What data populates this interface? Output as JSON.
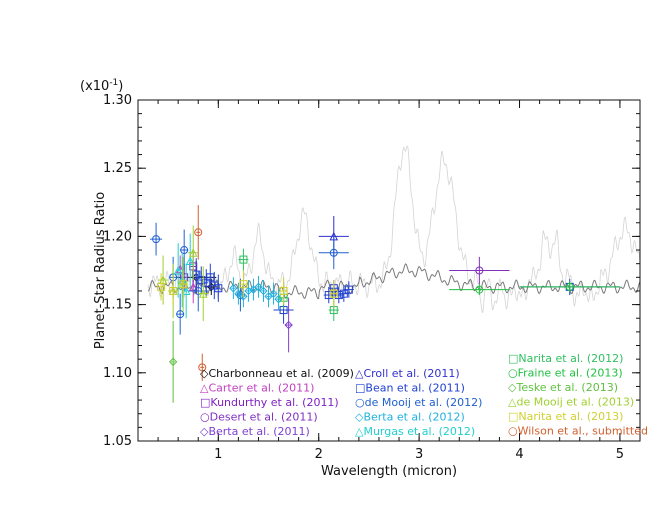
{
  "chart_data": {
    "type": "scatter",
    "xlabel": "Wavelength (micron)",
    "ylabel": "Planet-Star Radius Ratio",
    "y_multiplier_label": "(x10",
    "y_multiplier_exp": "-1",
    "y_multiplier_close": ")",
    "xlim": [
      0.2,
      5.2
    ],
    "ylim": [
      1.05,
      1.3
    ],
    "x_ticks": [
      1,
      2,
      3,
      4,
      5
    ],
    "y_ticks": [
      1.05,
      1.1,
      1.15,
      1.2,
      1.25,
      1.3
    ],
    "y_tick_labels": [
      "1.05",
      "1.10",
      "1.15",
      "1.20",
      "1.25",
      "1.30"
    ],
    "grid": false,
    "series": [
      {
        "name": "Charbonneau et al. (2009)",
        "color": "#111111",
        "marker": "diamond",
        "points": [
          [
            0.78,
            1.17,
            0.2,
            0.012
          ],
          [
            0.93,
            1.163,
            0.06,
            0.006
          ]
        ]
      },
      {
        "name": "Carter et al. (2011)",
        "color": "#c040c0",
        "marker": "triangle",
        "points": [
          [
            0.62,
            1.176,
            0.02,
            0.01
          ],
          [
            0.75,
            1.163,
            0.02,
            0.012
          ]
        ]
      },
      {
        "name": "Kundurthy et al. (2011)",
        "color": "#8020c0",
        "marker": "square",
        "points": [
          [
            0.66,
            1.17,
            0.03,
            0.01
          ],
          [
            0.75,
            1.178,
            0.03,
            0.012
          ]
        ]
      },
      {
        "name": "Desert et al. (2011)",
        "color": "#8030c0",
        "marker": "circle",
        "points": [
          [
            3.6,
            1.175,
            0.3,
            0.01
          ]
        ]
      },
      {
        "name": "Berta et al. (2011)",
        "color": "#8040d0",
        "marker": "diamond",
        "points": [
          [
            1.7,
            1.135,
            0.03,
            0.02
          ]
        ]
      },
      {
        "name": "Croll et al. (2011)",
        "color": "#3030d0",
        "marker": "triangle",
        "points": [
          [
            2.15,
            1.2,
            0.15,
            0.015
          ]
        ]
      },
      {
        "name": "Bean et al. (2011)",
        "color": "#2040d0",
        "marker": "square",
        "points": [
          [
            0.78,
            1.172,
            0.02,
            0.012
          ],
          [
            0.83,
            1.168,
            0.02,
            0.01
          ],
          [
            0.88,
            1.166,
            0.02,
            0.01
          ],
          [
            0.92,
            1.17,
            0.02,
            0.01
          ],
          [
            0.96,
            1.164,
            0.02,
            0.01
          ],
          [
            1.0,
            1.162,
            0.02,
            0.01
          ],
          [
            1.65,
            1.146,
            0.1,
            0.01
          ],
          [
            2.1,
            1.157,
            0.05,
            0.006
          ],
          [
            2.15,
            1.162,
            0.05,
            0.006
          ],
          [
            2.2,
            1.157,
            0.05,
            0.006
          ],
          [
            2.25,
            1.158,
            0.05,
            0.006
          ],
          [
            2.3,
            1.161,
            0.05,
            0.006
          ],
          [
            4.5,
            1.163,
            0.5,
            0.006
          ]
        ]
      },
      {
        "name": "de Mooij et al. (2012)",
        "color": "#2060d0",
        "marker": "circle",
        "points": [
          [
            0.38,
            1.198,
            0.06,
            0.012
          ],
          [
            0.55,
            1.17,
            0.04,
            0.015
          ],
          [
            0.62,
            1.143,
            0.04,
            0.015
          ],
          [
            0.66,
            1.19,
            0.04,
            0.015
          ],
          [
            0.8,
            1.16,
            0.1,
            0.015
          ],
          [
            2.15,
            1.188,
            0.15,
            0.012
          ],
          [
            1.22,
            1.157,
            0.05,
            0.012
          ]
        ]
      },
      {
        "name": "Berta et al. (2012)",
        "color": "#20b0e0",
        "marker": "diamond",
        "points": [
          [
            1.15,
            1.162,
            0.02,
            0.008
          ],
          [
            1.2,
            1.158,
            0.02,
            0.008
          ],
          [
            1.25,
            1.156,
            0.02,
            0.008
          ],
          [
            1.3,
            1.16,
            0.02,
            0.008
          ],
          [
            1.35,
            1.161,
            0.02,
            0.008
          ],
          [
            1.4,
            1.163,
            0.02,
            0.008
          ],
          [
            1.45,
            1.16,
            0.02,
            0.008
          ],
          [
            1.5,
            1.156,
            0.02,
            0.008
          ],
          [
            1.55,
            1.158,
            0.02,
            0.008
          ],
          [
            1.6,
            1.154,
            0.02,
            0.008
          ]
        ]
      },
      {
        "name": "Murgas et al. (2012)",
        "color": "#20d0d0",
        "marker": "triangle",
        "points": [
          [
            0.6,
            1.175,
            0.01,
            0.02
          ],
          [
            0.64,
            1.168,
            0.01,
            0.02
          ],
          [
            0.68,
            1.16,
            0.01,
            0.02
          ],
          [
            0.72,
            1.182,
            0.01,
            0.02
          ]
        ]
      },
      {
        "name": "Narita et al. (2012)",
        "color": "#30c060",
        "marker": "square",
        "points": [
          [
            1.25,
            1.183,
            0.05,
            0.008
          ],
          [
            1.65,
            1.155,
            0.05,
            0.008
          ],
          [
            2.15,
            1.146,
            0.05,
            0.008
          ]
        ]
      },
      {
        "name": "Fraine et al. (2013)",
        "color": "#20c040",
        "marker": "circle",
        "points": [
          [
            3.6,
            1.161,
            0.3,
            0.004
          ],
          [
            4.5,
            1.163,
            0.5,
            0.004
          ]
        ]
      },
      {
        "name": "Teske et al. (2013)",
        "color": "#60c040",
        "marker": "diamond",
        "points": [
          [
            0.55,
            1.108,
            0.02,
            0.03
          ]
        ]
      },
      {
        "name": "de Mooij et al. (2013)",
        "color": "#a0d030",
        "marker": "triangle",
        "points": [
          [
            0.45,
            1.168,
            0.05,
            0.018
          ],
          [
            0.55,
            1.16,
            0.05,
            0.02
          ],
          [
            0.65,
            1.165,
            0.05,
            0.02
          ],
          [
            0.75,
            1.188,
            0.05,
            0.02
          ],
          [
            0.85,
            1.158,
            0.05,
            0.02
          ]
        ]
      },
      {
        "name": "Narita et al. (2013)",
        "color": "#d0d030",
        "marker": "square",
        "points": [
          [
            0.43,
            1.163,
            0.04,
            0.01
          ],
          [
            0.55,
            1.16,
            0.04,
            0.01
          ],
          [
            0.65,
            1.165,
            0.04,
            0.01
          ],
          [
            1.25,
            1.165,
            0.04,
            0.01
          ],
          [
            1.65,
            1.16,
            0.04,
            0.01
          ],
          [
            2.15,
            1.158,
            0.04,
            0.01
          ]
        ]
      },
      {
        "name": "Wilson et al., submitted",
        "color": "#d06030",
        "marker": "circle",
        "points": [
          [
            0.8,
            1.203,
            0.02,
            0.02
          ],
          [
            0.84,
            1.104,
            0.02,
            0.01
          ]
        ]
      }
    ]
  }
}
